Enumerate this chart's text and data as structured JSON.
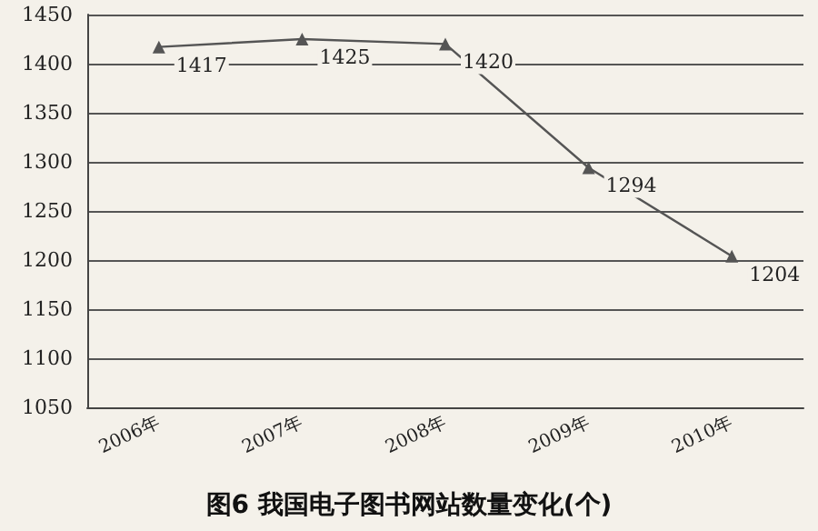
{
  "chart_data": {
    "type": "line",
    "title": "图6 我国电子图书网站数量变化(个)",
    "categories": [
      "2006年",
      "2007年",
      "2008年",
      "2009年",
      "2010年"
    ],
    "series": [
      {
        "color": "#555555",
        "values": [
          1417,
          1425,
          1420,
          1294,
          1204
        ]
      }
    ],
    "ylim": [
      1050,
      1450
    ],
    "yticks": [
      1050,
      1100,
      1150,
      1200,
      1250,
      1300,
      1350,
      1400,
      1450
    ],
    "grid": "y",
    "marker": "triangle",
    "line_style": "solid",
    "data_labels": true
  }
}
